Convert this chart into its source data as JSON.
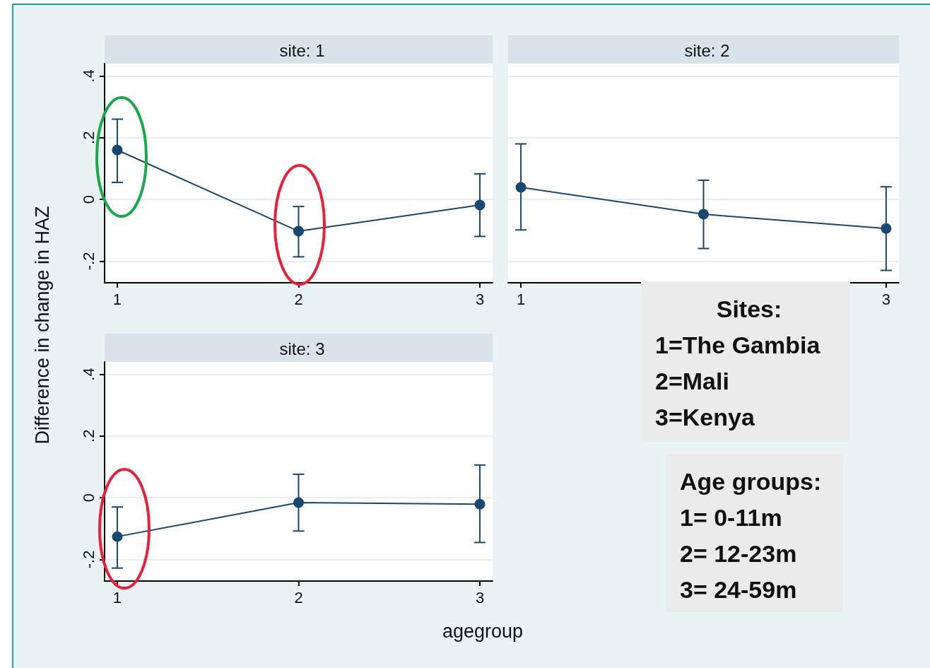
{
  "chart_data": [
    {
      "type": "line",
      "title": "site: 1",
      "ylabel": "Difference in change in HAZ",
      "x": [
        1,
        2,
        3
      ],
      "xlim": [
        0.93,
        3.07
      ],
      "xticks": [
        1,
        2,
        3
      ],
      "ylim": [
        -0.27,
        0.44
      ],
      "yticks": [
        {
          "value": -0.2,
          "label": "-.2"
        },
        0,
        {
          "value": 0.2,
          "label": ".2"
        },
        {
          "value": 0.4,
          "label": ".4"
        }
      ],
      "grid": "y",
      "marker": "circle",
      "line_style": "solid",
      "series": [
        {
          "color": "#1a476f",
          "values": [
            0.16,
            -0.103,
            -0.018
          ],
          "errors": [
            [
              0.055,
              0.26
            ],
            [
              -0.186,
              -0.023
            ],
            [
              -0.12,
              0.083
            ]
          ]
        }
      ]
    },
    {
      "type": "line",
      "title": "site: 2",
      "x": [
        1,
        2,
        3
      ],
      "xlim": [
        0.93,
        3.07
      ],
      "xticks": [
        1,
        3
      ],
      "ylim": [
        -0.27,
        0.44
      ],
      "yticks": [
        -0.2,
        0,
        0.2,
        0.4
      ],
      "grid": "y",
      "tick_labels": "x",
      "marker": "circle",
      "line_style": "solid",
      "series": [
        {
          "color": "#1a476f",
          "values": [
            0.039,
            -0.048,
            -0.094
          ],
          "errors": [
            [
              -0.099,
              0.18
            ],
            [
              -0.159,
              0.062
            ],
            [
              -0.23,
              0.041
            ]
          ]
        }
      ]
    },
    {
      "type": "line",
      "title": "site: 3",
      "xlabel": "agegroup",
      "x": [
        1,
        2,
        3
      ],
      "xlim": [
        0.93,
        3.07
      ],
      "xticks": [
        1,
        2,
        3
      ],
      "ylim": [
        -0.27,
        0.44
      ],
      "yticks": [
        {
          "value": -0.2,
          "label": "-.2"
        },
        0,
        {
          "value": 0.2,
          "label": ".2"
        },
        {
          "value": 0.4,
          "label": ".4"
        }
      ],
      "grid": "y",
      "marker": "circle",
      "line_style": "solid",
      "series": [
        {
          "color": "#1a476f",
          "values": [
            -0.126,
            -0.016,
            -0.021
          ],
          "errors": [
            [
              -0.228,
              -0.03
            ],
            [
              -0.108,
              0.076
            ],
            [
              -0.145,
              0.106
            ]
          ]
        }
      ]
    },
    {
      "type": "other",
      "annotations": [
        "Sites:\n1=The Gambia\n2=Mali\n3=Kenya",
        "Age groups:\n1= 0-11m\n2= 12-23m\n3= 24-59m"
      ]
    }
  ]
}
